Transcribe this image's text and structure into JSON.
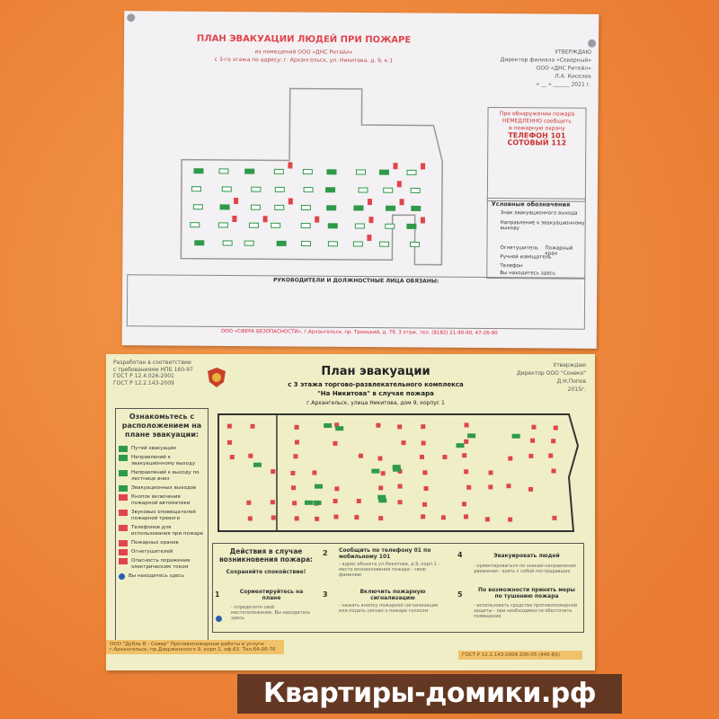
{
  "top_plan": {
    "title": "ПЛАН ЭВАКУАЦИИ ЛЮДЕЙ ПРИ ПОЖАРЕ",
    "subtitle1": "из помещений ООО «ДНС Ритейл»",
    "subtitle2": "с 3-го этажа по адресу: г. Архангельск, ул. Никитова, д. 9, к.1",
    "approval": [
      "УТВЕРЖДАЮ",
      "Директор филиала «Северный»",
      "ООО «ДНС Ритейл»",
      "Л.А. Киселев",
      "« __ » ______ 2021 г."
    ],
    "fire_box": [
      "При обнаружении пожара",
      "НЕМЕДЛЕННО сообщить",
      "в пожарную охрану",
      "ТЕЛЕФОН 101",
      "СОТОВЫЙ 112"
    ],
    "legend_title": "Условные обозначения",
    "legend_items": [
      "Знак эвакуационного выхода",
      "Направление к эвакуационному выходу",
      "Огнетушитель",
      "Пожарный кран",
      "Ручной извещатель",
      "Телефон",
      "Вы находитесь здесь"
    ],
    "duties_title": "РУКОВОДИТЕЛИ И ДОЛЖНОСТНЫЕ ЛИЦА ОБЯЗАНЫ:",
    "footer": "ООО «СФЕРА БЕЗОПАСНОСТИ», г.Архангельск, пр. Троицкий, д. 79, 3 этаж, тел. (8182) 21-90-90, 47-26-90"
  },
  "bottom_plan": {
    "developed": [
      "Разработан в соответствии",
      "с требованиями НПБ 160-97",
      "ГОСТ Р 12.4.026-2001",
      "ГОСТ Р 12.2.143-2009"
    ],
    "title": "План эвакуации",
    "subtitle1": "с 3 этажа торгово-развлекательного комплекса",
    "subtitle2": "\"На Никитова\" в случае пожара",
    "address": "г.Архангельск, улица Никитова, дом 9, корпус 1",
    "approval": [
      "Утверждаю",
      "Директор ООО \"Сонеко\"",
      "Д.Н.Попов",
      "2015г."
    ],
    "legend_title": "Ознакомьтесь с расположением на плане эвакуации:",
    "legend_items": [
      "Путей эвакуации",
      "Направлений к эвакуационному выходу",
      "Направлений к выходу по лестнице вниз",
      "Эвакуационных выходов",
      "Кнопок включения пожарной автоматики",
      "Звуковых оповещателей пожарной тревоги",
      "Телефонов для использования при пожаре",
      "Пожарных кранов",
      "Огнетушителей",
      "Опасность поражения электрическим током",
      "Вы находитесь здесь"
    ],
    "actions": {
      "title": "Действия в случае возникновения пожара:",
      "calm": "Сохраняйте спокойствие!",
      "step1_title": "Сориентируйтесь на плане",
      "step1_text": "- определите своё местоположение. Вы находитесь здесь",
      "step2_title": "Сообщить по телефону 01 по мобильному 101",
      "step2_text": "- адрес объекта ул.Никитова, д.9, корп.1 - место возникновения пожара - свою фамилию",
      "step3_title": "Включить пожарную сигнализацию",
      "step3_text": "- нажать кнопку пожарной сигнализации или подать сигнал о пожаре голосом",
      "step4_title": "Эвакуировать людей",
      "step4_text": "- ориентироваться по знакам направления движения - взять с собой пострадавших",
      "step5_title": "По возможности принять меры по тушению пожара",
      "step5_text": "- использовать средства противопожарной защиты - при необходимости обесточить помещение",
      "numbers": [
        "1",
        "2",
        "3",
        "4",
        "5"
      ]
    },
    "company": [
      "ООО \"Дубль В - Север\" Противопожарные работы и услуги",
      "г.Архангельск, пр.Дзержинского 9, корп.1, оф.63. Тел.64-00-76"
    ],
    "gost": "ГОСТ Р 12.2.143-2009 200-05 (445-83)"
  },
  "watermark": "Квартиры-домики.рф",
  "colors": {
    "wall": "#ef8a3e",
    "sign_red": "#e0454b",
    "sign_green": "#2f9a4a",
    "sheet_yellow": "#efeec6"
  }
}
